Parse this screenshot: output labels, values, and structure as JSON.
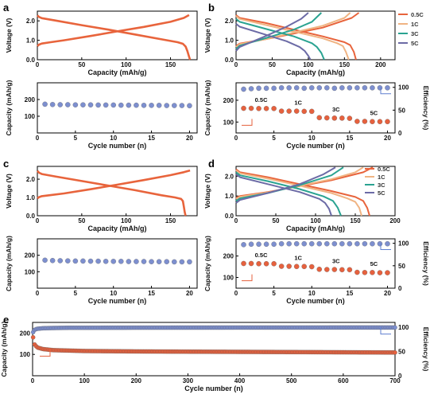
{
  "panel_letters": [
    "a",
    "b",
    "c",
    "d",
    "e"
  ],
  "colors": {
    "orange": "#e8643c",
    "charge": "#f4a46c",
    "half_c": "#e8643c",
    "one_c": "#f0b483",
    "three_c": "#2aa391",
    "five_c": "#6c6ba6",
    "blue_dot": "#7d8fcf",
    "red_dot": "#e6613e",
    "red_arrow": "#e5613d",
    "blue_arrow": "#5f7fcf"
  },
  "chart_data": [
    {
      "id": "a-top",
      "type": "line",
      "xlabel": "Capacity (mAh/g)",
      "ylabel": "Voltage (V)",
      "xlim": [
        0,
        180
      ],
      "ylim": [
        0,
        2.5
      ],
      "xticks": [
        0,
        50,
        100,
        150
      ],
      "yticks": [
        0.0,
        1.0,
        2.0
      ],
      "series": [
        {
          "kind": "charge",
          "color": "#e8643c",
          "x": [
            0,
            2,
            5,
            15,
            30,
            60,
            90,
            120,
            150,
            165,
            171
          ],
          "y": [
            0.7,
            0.78,
            0.83,
            0.9,
            1.0,
            1.22,
            1.46,
            1.69,
            1.95,
            2.15,
            2.3
          ]
        },
        {
          "kind": "discharge",
          "color": "#e8643c",
          "x": [
            0,
            2,
            5,
            20,
            50,
            80,
            110,
            140,
            158,
            164,
            167,
            169,
            171,
            172
          ],
          "y": [
            2.28,
            2.2,
            2.14,
            2.02,
            1.78,
            1.55,
            1.3,
            1.05,
            0.9,
            0.82,
            0.68,
            0.45,
            0.15,
            0.0
          ]
        }
      ]
    },
    {
      "id": "a-bottom",
      "type": "scatter",
      "xlabel": "Cycle number (n)",
      "ylabel": "Capacity (mAh/g)",
      "xlim": [
        0,
        21
      ],
      "ylim": [
        0,
        300
      ],
      "xticks": [
        0,
        5,
        10,
        15,
        20
      ],
      "yticks": [
        100,
        200
      ],
      "series": [
        {
          "marker": "blue",
          "x": [
            1,
            2,
            3,
            4,
            5,
            6,
            7,
            8,
            9,
            10,
            11,
            12,
            13,
            14,
            15,
            16,
            17,
            18,
            19,
            20
          ],
          "y": [
            172,
            170,
            169,
            169,
            168,
            168,
            168,
            167,
            167,
            167,
            166,
            166,
            166,
            165,
            165,
            165,
            164,
            164,
            164,
            163
          ]
        }
      ]
    },
    {
      "id": "b-top",
      "type": "line",
      "xlabel": "Capacity (mAh/g)",
      "ylabel": "Voltage (V)",
      "xlim": [
        0,
        220
      ],
      "ylim": [
        0,
        2.5
      ],
      "xticks": [
        0,
        50,
        100,
        150,
        200
      ],
      "yticks": [
        0.0,
        1.0,
        2.0
      ],
      "legend": [
        "0.5C",
        "1C",
        "3C",
        "5C"
      ],
      "series": [
        {
          "name": "0.5C",
          "color": "#e8643c",
          "charge": {
            "x": [
              0,
              5,
              40,
              80,
              120,
              160,
              170
            ],
            "y": [
              0.7,
              0.83,
              1.05,
              1.35,
              1.65,
              2.15,
              2.42
            ]
          },
          "discharge": {
            "x": [
              0,
              5,
              40,
              80,
              120,
              150,
              158,
              163,
              166
            ],
            "y": [
              2.3,
              2.15,
              1.9,
              1.55,
              1.2,
              0.9,
              0.75,
              0.4,
              0.0
            ]
          }
        },
        {
          "name": "1C",
          "color": "#f0b483",
          "charge": {
            "x": [
              0,
              5,
              40,
              80,
              120,
              150,
              158
            ],
            "y": [
              0.65,
              0.8,
              1.05,
              1.4,
              1.75,
              2.15,
              2.42
            ]
          },
          "discharge": {
            "x": [
              0,
              5,
              40,
              80,
              120,
              140,
              148,
              152,
              156
            ],
            "y": [
              2.25,
              2.1,
              1.8,
              1.45,
              1.1,
              0.85,
              0.7,
              0.4,
              0.0
            ]
          }
        },
        {
          "name": "3C",
          "color": "#2aa391",
          "charge": {
            "x": [
              0,
              5,
              40,
              80,
              105,
              118
            ],
            "y": [
              0.55,
              0.72,
              1.1,
              1.55,
              1.95,
              2.42
            ]
          },
          "discharge": {
            "x": [
              0,
              5,
              40,
              80,
              105,
              112,
              118,
              122
            ],
            "y": [
              2.1,
              1.95,
              1.6,
              1.2,
              0.85,
              0.65,
              0.35,
              0.0
            ]
          }
        },
        {
          "name": "5C",
          "color": "#6c6ba6",
          "charge": {
            "x": [
              0,
              5,
              40,
              70,
              90,
              100
            ],
            "y": [
              0.45,
              0.65,
              1.2,
              1.7,
              2.1,
              2.42
            ]
          },
          "discharge": {
            "x": [
              0,
              5,
              40,
              70,
              88,
              95,
              100,
              103
            ],
            "y": [
              1.85,
              1.7,
              1.3,
              0.95,
              0.65,
              0.45,
              0.2,
              0.0
            ]
          }
        }
      ]
    },
    {
      "id": "b-bottom",
      "type": "scatter",
      "xlabel": "Cycle number (n)",
      "ylabel": "Capacity (mAh/g)",
      "y2label": "Efficiency (%)",
      "xlim": [
        0,
        21
      ],
      "ylim": [
        50,
        280
      ],
      "y2lim": [
        0,
        110
      ],
      "xticks": [
        0,
        5,
        10,
        15,
        20
      ],
      "yticks": [
        100,
        200
      ],
      "y2ticks": [
        0,
        50,
        100
      ],
      "annotations": [
        "0.5C",
        "1C",
        "3C",
        "5C"
      ],
      "capacity": {
        "x": [
          1,
          2,
          3,
          4,
          5,
          6,
          7,
          8,
          9,
          10,
          11,
          12,
          13,
          14,
          15,
          16,
          17,
          18,
          19,
          20
        ],
        "y": [
          163,
          163,
          162,
          162,
          162,
          150,
          150,
          150,
          149,
          149,
          120,
          119,
          118,
          118,
          117,
          103,
          103,
          102,
          102,
          102
        ]
      },
      "efficiency": {
        "x": [
          1,
          2,
          3,
          4,
          5,
          6,
          7,
          8,
          9,
          10,
          11,
          12,
          13,
          14,
          15,
          16,
          17,
          18,
          19,
          20
        ],
        "y": [
          96,
          97,
          98,
          98,
          98,
          99,
          99,
          99,
          98,
          99,
          99,
          99,
          98,
          99,
          99,
          99,
          99,
          99,
          99,
          99
        ]
      }
    },
    {
      "id": "c-top",
      "type": "line",
      "xlabel": "Capacity (mAh/g)",
      "ylabel": "Voltage (V)",
      "xlim": [
        0,
        180
      ],
      "ylim": [
        0,
        2.7
      ],
      "xticks": [
        0,
        50,
        100,
        150
      ],
      "yticks": [
        0.0,
        1.0,
        2.0
      ],
      "series": [
        {
          "kind": "charge",
          "color": "#e8643c",
          "x": [
            0,
            2,
            5,
            15,
            30,
            60,
            90,
            120,
            150,
            165,
            172
          ],
          "y": [
            0.95,
            1.02,
            1.07,
            1.13,
            1.22,
            1.45,
            1.7,
            1.95,
            2.22,
            2.38,
            2.48
          ]
        },
        {
          "kind": "discharge",
          "color": "#e8643c",
          "x": [
            0,
            2,
            5,
            20,
            50,
            80,
            110,
            140,
            155,
            162,
            164,
            165,
            166,
            167
          ],
          "y": [
            2.45,
            2.35,
            2.28,
            2.15,
            1.9,
            1.65,
            1.4,
            1.12,
            1.0,
            0.92,
            0.8,
            0.5,
            0.2,
            0.0
          ]
        }
      ]
    },
    {
      "id": "c-bottom",
      "type": "scatter",
      "xlabel": "Cycle number (n)",
      "ylabel": "Capacity (mAh/g)",
      "xlim": [
        0,
        21
      ],
      "ylim": [
        0,
        300
      ],
      "xticks": [
        0,
        5,
        10,
        15,
        20
      ],
      "yticks": [
        100,
        200
      ],
      "series": [
        {
          "marker": "blue",
          "x": [
            1,
            2,
            3,
            4,
            5,
            6,
            7,
            8,
            9,
            10,
            11,
            12,
            13,
            14,
            15,
            16,
            17,
            18,
            19,
            20
          ],
          "y": [
            170,
            168,
            167,
            166,
            165,
            165,
            164,
            164,
            163,
            163,
            163,
            162,
            162,
            162,
            161,
            161,
            161,
            160,
            160,
            160
          ]
        }
      ]
    },
    {
      "id": "d-top",
      "type": "line",
      "xlabel": "Capacity (mAh/g)",
      "ylabel": "Voltage (V)",
      "xlim": [
        0,
        200
      ],
      "ylim": [
        0,
        2.5
      ],
      "xticks": [
        0,
        50,
        100,
        150,
        200
      ],
      "yticks": [
        0.0,
        1.0,
        2.0
      ],
      "legend": [
        "0.5C",
        "1C",
        "3C",
        "5C"
      ],
      "series": [
        {
          "name": "0.5C",
          "color": "#e8643c",
          "charge": {
            "x": [
              0,
              5,
              40,
              80,
              120,
              160,
              172
            ],
            "y": [
              0.9,
              1.0,
              1.2,
              1.5,
              1.8,
              2.2,
              2.45
            ]
          },
          "discharge": {
            "x": [
              0,
              5,
              40,
              80,
              120,
              150,
              160,
              165,
              168
            ],
            "y": [
              2.35,
              2.2,
              1.95,
              1.6,
              1.25,
              0.95,
              0.75,
              0.4,
              0.0
            ]
          }
        },
        {
          "name": "1C",
          "color": "#f0b483",
          "charge": {
            "x": [
              0,
              5,
              40,
              80,
              120,
              150,
              160
            ],
            "y": [
              0.85,
              0.96,
              1.18,
              1.52,
              1.85,
              2.2,
              2.45
            ]
          },
          "discharge": {
            "x": [
              0,
              5,
              40,
              80,
              120,
              140,
              150,
              155,
              158
            ],
            "y": [
              2.3,
              2.15,
              1.88,
              1.52,
              1.15,
              0.88,
              0.7,
              0.4,
              0.0
            ]
          }
        },
        {
          "name": "3C",
          "color": "#2aa391",
          "charge": {
            "x": [
              0,
              5,
              40,
              80,
              120,
              135
            ],
            "y": [
              0.75,
              0.88,
              1.15,
              1.55,
              2.05,
              2.45
            ]
          },
          "discharge": {
            "x": [
              0,
              5,
              40,
              80,
              110,
              122,
              128,
              132
            ],
            "y": [
              2.2,
              2.05,
              1.75,
              1.35,
              0.98,
              0.75,
              0.4,
              0.0
            ]
          }
        },
        {
          "name": "5C",
          "color": "#6c6ba6",
          "charge": {
            "x": [
              0,
              5,
              40,
              80,
              110,
              125
            ],
            "y": [
              0.65,
              0.8,
              1.15,
              1.6,
              2.1,
              2.45
            ]
          },
          "discharge": {
            "x": [
              0,
              5,
              40,
              80,
              105,
              112,
              117,
              120
            ],
            "y": [
              2.1,
              1.95,
              1.6,
              1.2,
              0.85,
              0.65,
              0.35,
              0.0
            ]
          }
        }
      ]
    },
    {
      "id": "d-bottom",
      "type": "scatter",
      "xlabel": "Cycle number (n)",
      "ylabel": "Capacity (mAh/g)",
      "y2label": "Efficiency (%)",
      "xlim": [
        0,
        21
      ],
      "ylim": [
        50,
        280
      ],
      "y2lim": [
        0,
        110
      ],
      "xticks": [
        0,
        5,
        10,
        15,
        20
      ],
      "yticks": [
        100,
        200
      ],
      "y2ticks": [
        0,
        50,
        100
      ],
      "annotations": [
        "0.5C",
        "1C",
        "3C",
        "5C"
      ],
      "capacity": {
        "x": [
          1,
          2,
          3,
          4,
          5,
          6,
          7,
          8,
          9,
          10,
          11,
          12,
          13,
          14,
          15,
          16,
          17,
          18,
          19,
          20
        ],
        "y": [
          165,
          165,
          164,
          164,
          164,
          152,
          152,
          151,
          151,
          150,
          138,
          137,
          137,
          136,
          136,
          124,
          123,
          123,
          122,
          122
        ]
      },
      "efficiency": {
        "x": [
          1,
          2,
          3,
          4,
          5,
          6,
          7,
          8,
          9,
          10,
          11,
          12,
          13,
          14,
          15,
          16,
          17,
          18,
          19,
          20
        ],
        "y": [
          97,
          98,
          98,
          98,
          98,
          99,
          99,
          99,
          99,
          99,
          99,
          99,
          99,
          99,
          99,
          99,
          99,
          99,
          99,
          99
        ]
      }
    },
    {
      "id": "e",
      "type": "scatter",
      "xlabel": "Cycle number (n)",
      "ylabel": "Capacity (mAh/g)",
      "y2label": "Efficiency (%)",
      "xlim": [
        0,
        700
      ],
      "ylim": [
        0,
        250
      ],
      "y2lim": [
        0,
        110
      ],
      "xticks": [
        0,
        100,
        200,
        300,
        400,
        500,
        600,
        700
      ],
      "yticks": [
        100,
        200
      ],
      "y2ticks": [
        0,
        50,
        100
      ],
      "capacity": {
        "x": [
          1,
          3,
          6,
          10,
          20,
          40,
          70,
          100,
          150,
          200,
          300,
          400,
          500,
          600,
          700
        ],
        "y": [
          180,
          150,
          140,
          132,
          125,
          120,
          118,
          116,
          115,
          114,
          113,
          112,
          111,
          110,
          109
        ]
      },
      "efficiency": {
        "x": [
          1,
          3,
          6,
          10,
          20,
          40,
          70,
          100,
          200,
          300,
          400,
          500,
          600,
          700
        ],
        "y": [
          90,
          94,
          96,
          97,
          98,
          98.5,
          99,
          99,
          99.2,
          99.3,
          99.4,
          99.4,
          99.5,
          99.5
        ]
      }
    }
  ]
}
